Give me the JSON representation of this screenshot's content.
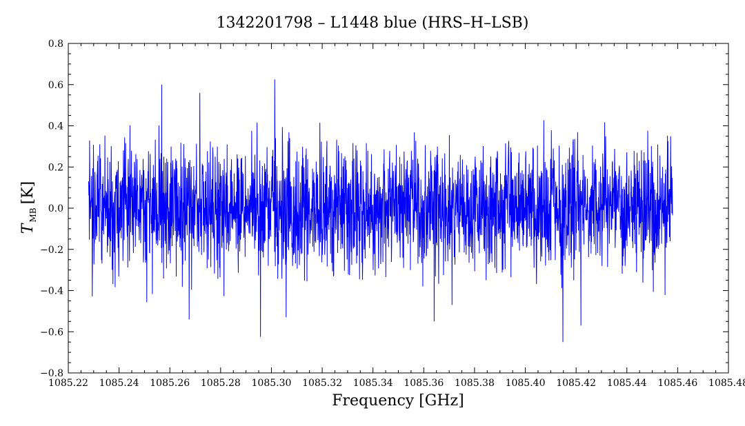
{
  "chart_data": {
    "type": "line",
    "title": "1342201798 – L1448 blue (HRS–H–LSB)",
    "xlabel": "Frequency [GHz]",
    "ylabel": {
      "symbol": "T",
      "subscript": "MB",
      "unit": "[K]"
    },
    "xlim": [
      1085.22,
      1085.48
    ],
    "ylim": [
      -0.8,
      0.8
    ],
    "x_ticks": [
      1085.22,
      1085.24,
      1085.26,
      1085.28,
      1085.3,
      1085.32,
      1085.34,
      1085.36,
      1085.38,
      1085.4,
      1085.42,
      1085.44,
      1085.46,
      1085.48
    ],
    "x_tick_labels": [
      "1085.22",
      "1085.24",
      "1085.26",
      "1085.28",
      "1085.30",
      "1085.32",
      "1085.34",
      "1085.36",
      "1085.38",
      "1085.40",
      "1085.42",
      "1085.44",
      "1085.46",
      "1085.48"
    ],
    "y_ticks": [
      -0.8,
      -0.6,
      -0.4,
      -0.2,
      0.0,
      0.2,
      0.4,
      0.6,
      0.8
    ],
    "y_tick_labels": [
      "−0.8",
      "−0.6",
      "−0.4",
      "−0.2",
      "0.0",
      "0.2",
      "0.4",
      "0.6",
      "0.8"
    ],
    "grid": false,
    "series": [
      {
        "color": "#0000ff",
        "x_start": 1085.228,
        "x_end": 1085.458,
        "noise_rms": 0.15,
        "notable_points": [
          {
            "x": 1085.2568,
            "y": 0.6
          },
          {
            "x": 1085.2718,
            "y": 0.56
          },
          {
            "x": 1085.3013,
            "y": 0.625
          },
          {
            "x": 1085.2957,
            "y": -0.625
          },
          {
            "x": 1085.4148,
            "y": -0.65
          },
          {
            "x": 1085.2676,
            "y": -0.54
          },
          {
            "x": 1085.3058,
            "y": -0.53
          },
          {
            "x": 1085.3641,
            "y": -0.55
          },
          {
            "x": 1085.4219,
            "y": -0.57
          }
        ]
      }
    ]
  },
  "colors": {
    "series": "#0000ff",
    "axes": "#000000",
    "background": "#ffffff"
  }
}
